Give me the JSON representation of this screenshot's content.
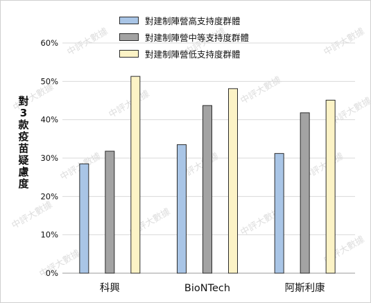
{
  "chart_data": {
    "type": "bar",
    "categories": [
      "科興",
      "BioNTech",
      "阿斯利康"
    ],
    "series": [
      {
        "name": "對建制陣營高支持度群體",
        "color": "#a9c5e6",
        "values": [
          28.5,
          33.5,
          31.2
        ]
      },
      {
        "name": "對建制陣營中等支持度群體",
        "color": "#a3a3a3",
        "values": [
          31.8,
          43.7,
          41.8
        ]
      },
      {
        "name": "對建制陣營低支持度群體",
        "color": "#fcf3c6",
        "values": [
          51.3,
          48.1,
          45.1
        ]
      }
    ],
    "ylabel": "對3款疫苗疑慮度",
    "ylim": [
      0,
      60
    ],
    "yticks": [
      "0%",
      "10%",
      "20%",
      "30%",
      "40%",
      "50%",
      "60%"
    ],
    "grid": true,
    "legend_position": "top-center",
    "watermark": "中評大數據"
  }
}
